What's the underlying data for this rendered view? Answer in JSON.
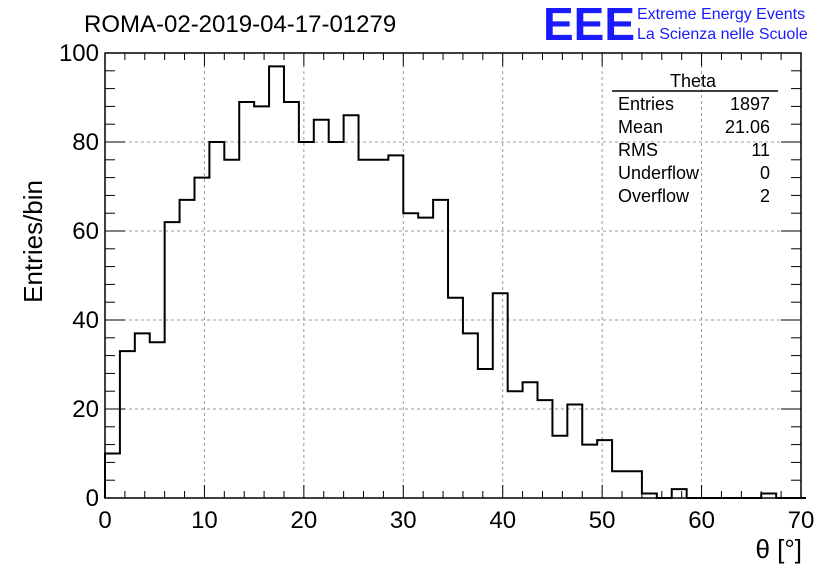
{
  "chart_data": {
    "type": "bar",
    "title": "ROMA-02-2019-04-17-01279",
    "xlabel": "θ [°]",
    "ylabel": "Entries/bin",
    "xlim": [
      0,
      70
    ],
    "ylim": [
      0,
      100
    ],
    "grid": true,
    "x_ticks": [
      "0",
      "10",
      "20",
      "30",
      "40",
      "50",
      "60",
      "70"
    ],
    "y_ticks": [
      "0",
      "20",
      "40",
      "60",
      "80",
      "100"
    ],
    "bin_width": 1.5,
    "bin_start": 0,
    "values": [
      10,
      33,
      37,
      35,
      62,
      67,
      72,
      80,
      76,
      89,
      88,
      97,
      89,
      80,
      85,
      80,
      86,
      76,
      76,
      77,
      64,
      63,
      67,
      45,
      37,
      29,
      46,
      24,
      26,
      22,
      14,
      21,
      12,
      13,
      6,
      6,
      1,
      0,
      2,
      0,
      0,
      0,
      0,
      0,
      1,
      0,
      0
    ],
    "stats": {
      "name": "Theta",
      "rows": [
        {
          "label": "Entries",
          "value": "1897"
        },
        {
          "label": "Mean",
          "value": "21.06"
        },
        {
          "label": "RMS",
          "value": "11"
        },
        {
          "label": "Underflow",
          "value": "0"
        },
        {
          "label": "Overflow",
          "value": "2"
        }
      ]
    }
  },
  "logo": {
    "text": "EEE",
    "line1": "Extreme Energy Events",
    "line2": "La Scienza nelle Scuole",
    "color": "#1a1aff"
  }
}
